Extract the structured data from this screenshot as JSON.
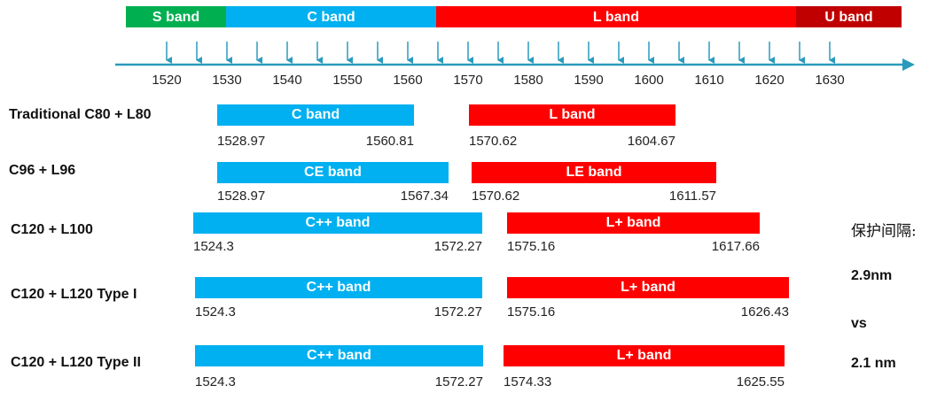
{
  "bands": [
    "S band",
    "C band",
    "L band",
    "U band"
  ],
  "axis_labels": [
    1520,
    1530,
    1540,
    1550,
    1560,
    1570,
    1580,
    1590,
    1600,
    1610,
    1620,
    1630
  ],
  "rows": [
    {
      "name": "Traditional C80 + L80",
      "c": {
        "label": "C band",
        "start": "1528.97",
        "end": "1560.81"
      },
      "l": {
        "label": "L band",
        "start": "1570.62",
        "end": "1604.67"
      }
    },
    {
      "name": "C96 + L96",
      "c": {
        "label": "CE band",
        "start": "1528.97",
        "end": "1567.34"
      },
      "l": {
        "label": "LE band",
        "start": "1570.62",
        "end": "1611.57"
      }
    },
    {
      "name": "C120 + L100",
      "c": {
        "label": "C++ band",
        "start": "1524.3",
        "end": "1572.27"
      },
      "l": {
        "label": "L+ band",
        "start": "1575.16",
        "end": "1617.66"
      }
    },
    {
      "name": "C120 + L120 Type I",
      "c": {
        "label": "C++ band",
        "start": "1524.3",
        "end": "1572.27"
      },
      "l": {
        "label": "L+ band",
        "start": "1575.16",
        "end": "1626.43"
      }
    },
    {
      "name": "C120 + L120  Type II",
      "c": {
        "label": "C++ band",
        "start": "1524.3",
        "end": "1572.27"
      },
      "l": {
        "label": "L+ band",
        "start": "1574.33",
        "end": "1625.55"
      }
    }
  ],
  "notes": [
    "保护间隔:",
    "2.9nm",
    "vs",
    "2.1 nm"
  ]
}
